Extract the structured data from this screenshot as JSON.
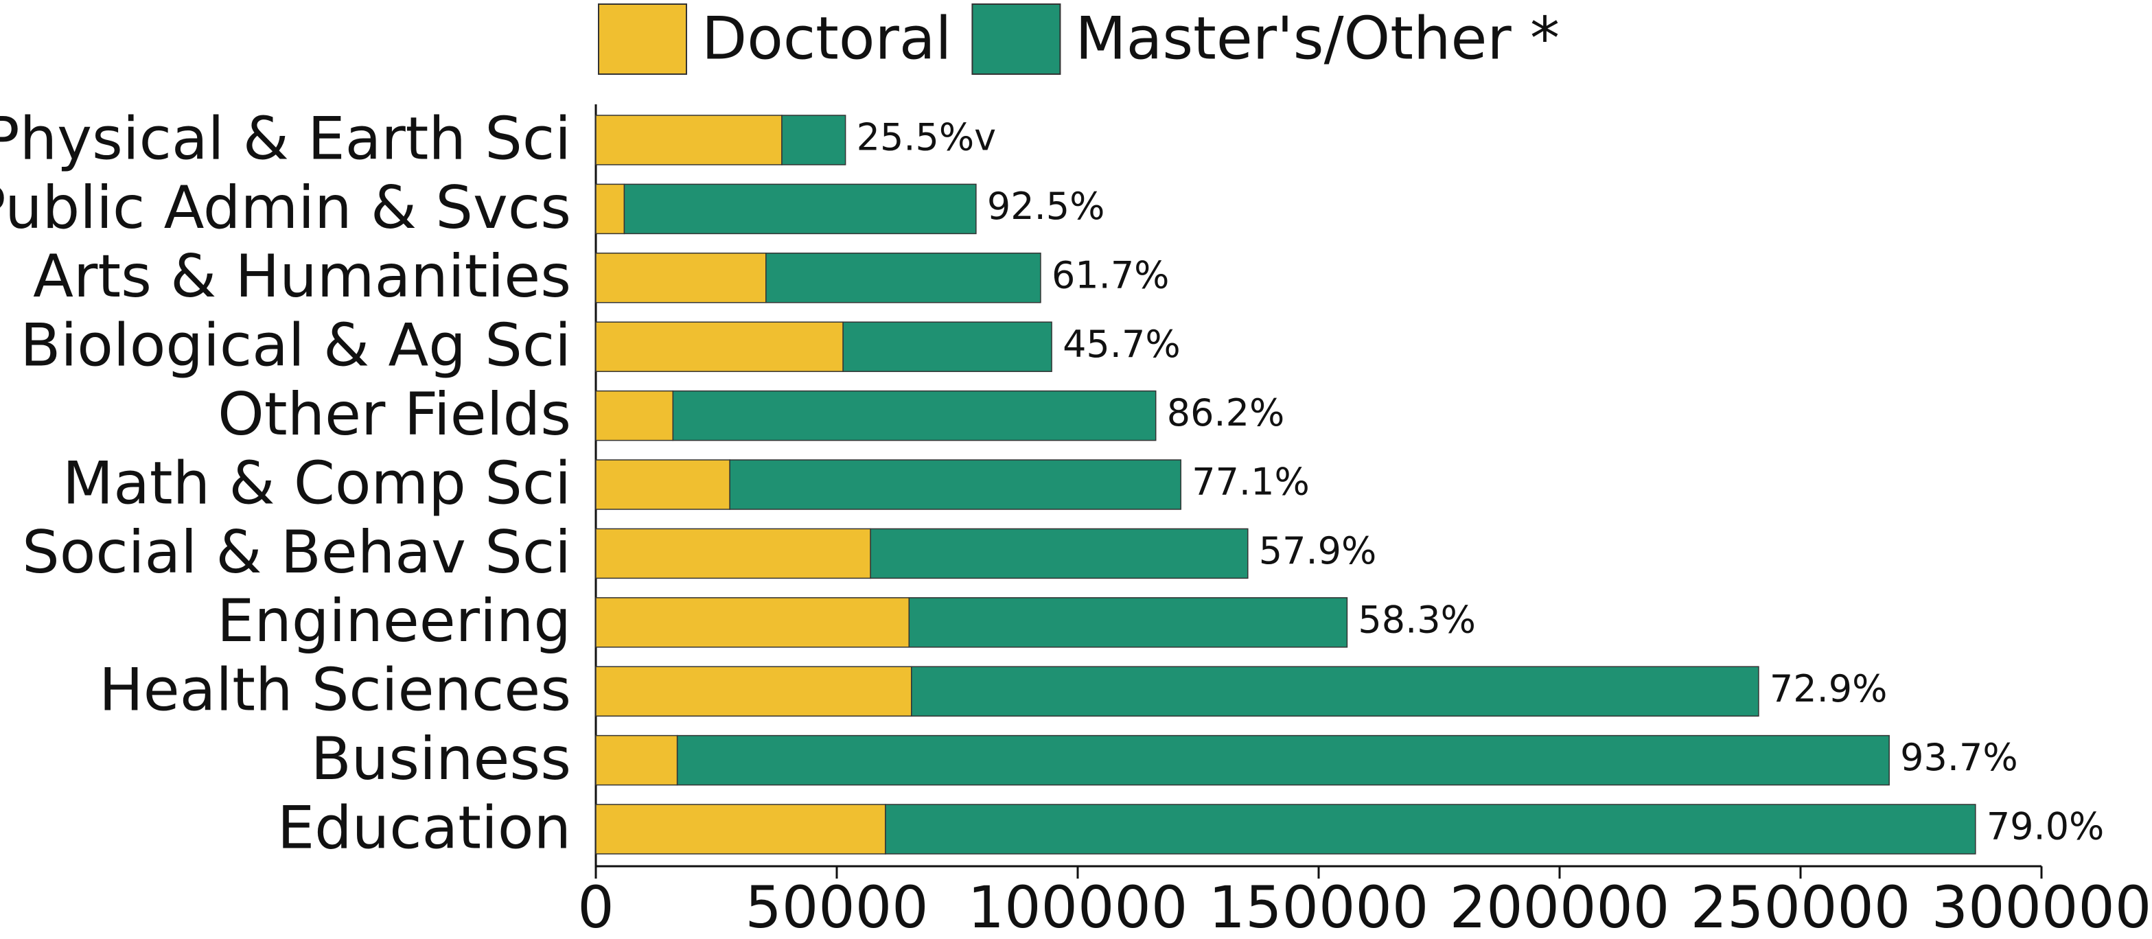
{
  "chart_data": {
    "type": "stacked_barh",
    "categories": [
      "Physical & Earth Sci",
      "Public Admin & Svcs",
      "Arts & Humanities",
      "Biological & Ag Sci",
      "Other Fields",
      "Math & Comp Sci",
      "Social & Behav Sci",
      "Engineering",
      "Health Sciences",
      "Business",
      "Education"
    ],
    "series": [
      {
        "name": "Doctoral",
        "color": "#f0bf30",
        "values": [
          38600,
          5900,
          35300,
          51300,
          16000,
          27800,
          57000,
          65000,
          65500,
          16900,
          60100
        ]
      },
      {
        "name": "Master's/Other *",
        "color": "#1f9172",
        "values": [
          13200,
          73000,
          57000,
          43300,
          100200,
          93600,
          78300,
          90900,
          175800,
          251500,
          226200
        ]
      }
    ],
    "percent_labels": [
      "25.5%v",
      "92.5%",
      "61.7%",
      "45.7%",
      "86.2%",
      "77.1%",
      "57.9%",
      "58.3%",
      "72.9%",
      "93.7%",
      "79.0%"
    ],
    "xlim": [
      0,
      300000
    ],
    "xticks": [
      0,
      50000,
      100000,
      150000,
      200000,
      250000,
      300000
    ],
    "legend": "top"
  }
}
